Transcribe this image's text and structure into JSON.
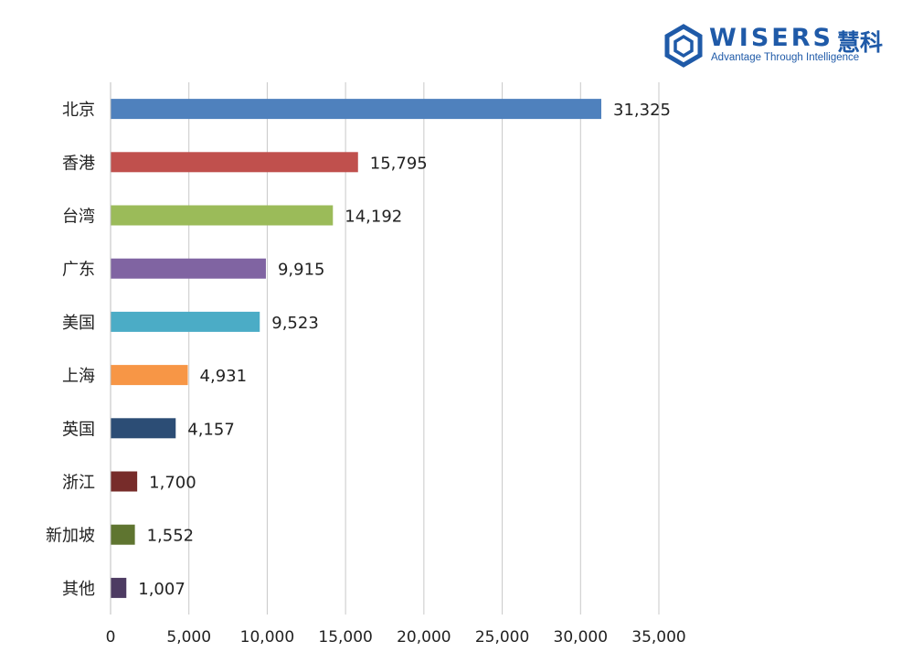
{
  "logo": {
    "name": "WISERS",
    "name_cn": "慧科",
    "tagline": "Advantage Through Intelligence",
    "color": "#1f5aa8"
  },
  "chart_data": {
    "type": "bar",
    "orientation": "horizontal",
    "title": "",
    "xlabel": "",
    "ylabel": "",
    "xlim": [
      0,
      35000
    ],
    "xticks": [
      0,
      5000,
      10000,
      15000,
      20000,
      25000,
      30000,
      35000
    ],
    "xtick_labels": [
      "0",
      "5,000",
      "10,000",
      "15,000",
      "20,000",
      "25,000",
      "30,000",
      "35,000"
    ],
    "grid": "vertical",
    "categories": [
      "北京",
      "香港",
      "台湾",
      "广东",
      "美国",
      "上海",
      "英国",
      "浙江",
      "新加坡",
      "其他"
    ],
    "values": [
      31325,
      15795,
      14192,
      9915,
      9523,
      4931,
      4157,
      1700,
      1552,
      1007
    ],
    "value_labels": [
      "31,325",
      "15,795",
      "14,192",
      "9,915",
      "9,523",
      "4,931",
      "4,157",
      "1,700",
      "1,552",
      "1,007"
    ],
    "colors": [
      "#4f81bd",
      "#c0504d",
      "#9bbb59",
      "#8064a2",
      "#4bacc6",
      "#f79646",
      "#2c4d75",
      "#772c2a",
      "#5f7530",
      "#4d3b62"
    ]
  }
}
